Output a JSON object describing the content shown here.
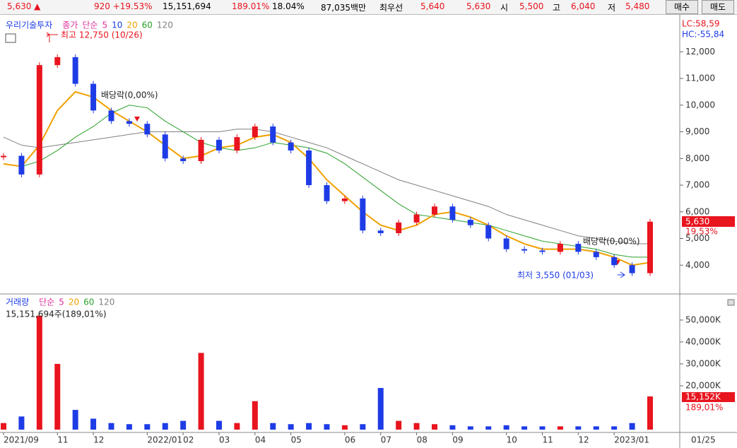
{
  "header": {
    "items": [
      {
        "text": "5,630 ▲",
        "color": "#e8141e"
      },
      {
        "text": "920 +19.53%",
        "color": "#e8141e"
      },
      {
        "text": "15,151,694",
        "color": "#000000"
      },
      {
        "text": "189.01%",
        "color": "#e8141e"
      },
      {
        "text": "18.04%",
        "color": "#000000"
      },
      {
        "text": "87,035백만",
        "color": "#000000"
      },
      {
        "text": "최우선",
        "color": "#000000"
      },
      {
        "text": "5,640",
        "color": "#e8141e"
      },
      {
        "text": "5,630",
        "color": "#e8141e"
      },
      {
        "text": "시",
        "color": "#000000"
      },
      {
        "text": "5,500",
        "color": "#e8141e"
      },
      {
        "text": "고",
        "color": "#000000"
      },
      {
        "text": "6,040",
        "color": "#e8141e"
      },
      {
        "text": "저",
        "color": "#000000"
      },
      {
        "text": "5,480",
        "color": "#e8141e"
      }
    ],
    "buttons": [
      "매수",
      "매도"
    ]
  },
  "chart_data": [
    {
      "type": "candlestick",
      "title": "우리기술투자",
      "series": [
        {
          "name": "종가",
          "color": "#e0309a",
          "up_color": "#e8141e",
          "down_color": "#1e3ce6",
          "values": [
            8100,
            7400,
            11500,
            11800,
            10800,
            9800,
            9400,
            9300,
            8900,
            8000,
            7900,
            8700,
            8300,
            8800,
            9200,
            8600,
            8300,
            7000,
            6400,
            6500,
            5300,
            5200,
            5600,
            5900,
            6200,
            5700,
            5500,
            5000,
            4600,
            4550,
            4500,
            4800,
            4500,
            4300,
            4000,
            3700,
            5630
          ]
        },
        {
          "name": "20",
          "color": "#f0a000",
          "values": [
            7800,
            7700,
            8500,
            9800,
            10500,
            10300,
            9800,
            9400,
            9000,
            8500,
            8000,
            8100,
            8400,
            8500,
            8800,
            8900,
            8600,
            8000,
            7200,
            6600,
            6000,
            5500,
            5300,
            5500,
            5900,
            6000,
            5800,
            5500,
            5100,
            4800,
            4600,
            4600,
            4600,
            4500,
            4300,
            4000,
            4100
          ]
        },
        {
          "name": "60",
          "color": "#2aa02a",
          "values": [
            7800,
            7700,
            7900,
            8300,
            8800,
            9200,
            9700,
            10000,
            9900,
            9400,
            9000,
            8600,
            8400,
            8300,
            8400,
            8600,
            8500,
            8400,
            8200,
            7800,
            7300,
            6800,
            6300,
            5900,
            5800,
            5700,
            5600,
            5500,
            5300,
            5100,
            4900,
            4800,
            4700,
            4600,
            4400,
            4300,
            4300
          ]
        },
        {
          "name": "120",
          "color": "#808080",
          "values": [
            8800,
            8500,
            8400,
            8500,
            8600,
            8700,
            8800,
            8900,
            9000,
            9000,
            9000,
            9000,
            9000,
            9100,
            9100,
            9000,
            8800,
            8600,
            8400,
            8100,
            7800,
            7500,
            7200,
            7000,
            6800,
            6600,
            6400,
            6200,
            5900,
            5700,
            5500,
            5300,
            5100,
            5000,
            4900,
            4800,
            4800
          ]
        }
      ],
      "legend_extra": [
        {
          "text": "단순",
          "color": "#e0309a"
        },
        {
          "text": "5",
          "color": "#e0309a"
        },
        {
          "text": "10",
          "color": "#1e3ce6"
        }
      ],
      "ylim": [
        3000,
        13200
      ],
      "yticks": [
        {
          "value": 4000,
          "label": "4,000"
        },
        {
          "value": 5000,
          "label": "5,000"
        },
        {
          "value": 6000,
          "label": "6,000"
        },
        {
          "value": 7000,
          "label": "7,000"
        },
        {
          "value": 8000,
          "label": "8,000"
        },
        {
          "value": 9000,
          "label": "9,000"
        },
        {
          "value": 10000,
          "label": "10,000"
        },
        {
          "value": 11000,
          "label": "11,000"
        },
        {
          "value": 12000,
          "label": "12,000"
        }
      ],
      "annotations": {
        "high": "최고 12,750 (10/26)",
        "low": "최저 3,550 (01/03)",
        "dividend": [
          "배당락(0,00%)",
          "배당락(0,00%)"
        ],
        "lc": "LC:58,59",
        "hc": "HC:-55,84",
        "current_price": "5,630",
        "current_change": "19,53%"
      }
    },
    {
      "type": "bar",
      "title": "거래량",
      "subtitle": "15,151,694주(189,01%)",
      "categories": [
        "2021/09",
        null,
        null,
        "11",
        null,
        "12",
        null,
        null,
        "2022/01",
        null,
        "02",
        null,
        "03",
        null,
        "04",
        null,
        "05",
        null,
        null,
        "06",
        null,
        "07",
        null,
        "08",
        null,
        "09",
        null,
        null,
        "10",
        null,
        "11",
        null,
        "12",
        null,
        "2023/01",
        null,
        null
      ],
      "series": [
        {
          "name": "거래량",
          "values": [
            3000,
            6000,
            52000,
            30000,
            9000,
            5000,
            3000,
            2500,
            2500,
            3000,
            4000,
            35000,
            4000,
            3000,
            13000,
            3000,
            2500,
            3000,
            2500,
            2000,
            2500,
            19000,
            4000,
            3000,
            2500,
            2000,
            1500,
            1500,
            2000,
            1500,
            1500,
            1500,
            1500,
            1500,
            1500,
            3000,
            15152
          ]
        }
      ],
      "legend_extra": [
        {
          "text": "단순",
          "color": "#e0309a"
        },
        {
          "text": "5",
          "color": "#e0309a"
        },
        {
          "text": "20",
          "color": "#f0a000"
        },
        {
          "text": "60",
          "color": "#2aa02a"
        },
        {
          "text": "120",
          "color": "#808080"
        }
      ],
      "ylim": [
        0,
        59000
      ],
      "yticks": [
        {
          "value": 20000,
          "label": "20,000K"
        },
        {
          "value": 30000,
          "label": "30,000K"
        },
        {
          "value": 40000,
          "label": "40,000K"
        },
        {
          "value": 50000,
          "label": "50,000K"
        }
      ],
      "current_label": "15,152K",
      "current_ratio": "189,01%",
      "cursor_date": "01/25"
    }
  ]
}
